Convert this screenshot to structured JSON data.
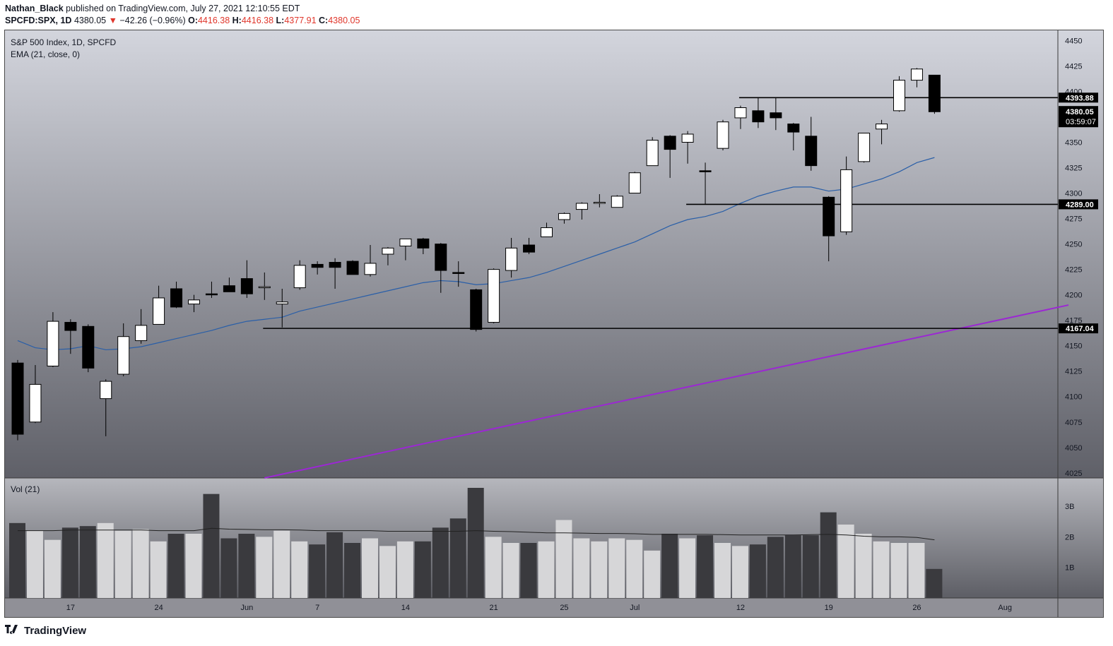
{
  "header": {
    "author": "Nathan_Black",
    "published_text": "published on TradingView.com, July 27, 2021 12:10:55 EDT",
    "symbol": "SPCFD:SPX, 1D",
    "last": "4380.05",
    "down_arrow": "▼",
    "change": "−42.26 (−0.96%)",
    "o_label": "O:",
    "o_value": "4416.38",
    "h_label": "H:",
    "h_value": "4416.38",
    "l_label": "L:",
    "l_value": "4377.91",
    "c_label": "C:",
    "c_value": "4380.05"
  },
  "legend": {
    "title": "S&P 500 Index, 1D, SPCFD",
    "ema": "EMA (21, close, 0)",
    "vol": "Vol (21)"
  },
  "branding": {
    "logo_text": "TradingView",
    "logo_icon": "tradingview-logo-icon"
  },
  "colors": {
    "up_body": "#ffffff",
    "down_body": "#000000",
    "ema_line": "#2a5fa8",
    "trend_line": "#9c27d4",
    "hline": "#000000",
    "vol_up": "#d6d6d8",
    "vol_down": "#3a3a3e",
    "vol_ma": "#222222"
  },
  "chart_data": {
    "type": "candlestick",
    "title": "S&P 500 Index, 1D, SPCFD",
    "price_axis": {
      "ticks": [
        4025,
        4050,
        4075,
        4100,
        4125,
        4150,
        4175,
        4200,
        4225,
        4250,
        4275,
        4300,
        4325,
        4350,
        4375,
        4400,
        4425,
        4450
      ],
      "range": [
        4020,
        4460
      ]
    },
    "x_axis": {
      "labels": [
        {
          "label": "17",
          "index": 3
        },
        {
          "label": "24",
          "index": 8
        },
        {
          "label": "Jun",
          "index": 13
        },
        {
          "label": "7",
          "index": 17
        },
        {
          "label": "14",
          "index": 22
        },
        {
          "label": "21",
          "index": 27
        },
        {
          "label": "25",
          "index": 31
        },
        {
          "label": "Jul",
          "index": 35
        },
        {
          "label": "12",
          "index": 41
        },
        {
          "label": "19",
          "index": 46
        },
        {
          "label": "26",
          "index": 51
        },
        {
          "label": "Aug",
          "index": 56
        }
      ]
    },
    "candles": [
      {
        "o": 4133,
        "h": 4136,
        "l": 4057,
        "c": 4063
      },
      {
        "o": 4075,
        "h": 4131,
        "l": 4074,
        "c": 4112
      },
      {
        "o": 4130,
        "h": 4183,
        "l": 4129,
        "c": 4174
      },
      {
        "o": 4173,
        "h": 4176,
        "l": 4142,
        "c": 4165
      },
      {
        "o": 4169,
        "h": 4171,
        "l": 4124,
        "c": 4128
      },
      {
        "o": 4098,
        "h": 4117,
        "l": 4061,
        "c": 4115
      },
      {
        "o": 4122,
        "h": 4172,
        "l": 4120,
        "c": 4159
      },
      {
        "o": 4155,
        "h": 4186,
        "l": 4152,
        "c": 4170
      },
      {
        "o": 4171,
        "h": 4209,
        "l": 4171,
        "c": 4197
      },
      {
        "o": 4206,
        "h": 4213,
        "l": 4187,
        "c": 4188
      },
      {
        "o": 4191,
        "h": 4200,
        "l": 4183,
        "c": 4195
      },
      {
        "o": 4201,
        "h": 4213,
        "l": 4197,
        "c": 4200
      },
      {
        "o": 4209,
        "h": 4217,
        "l": 4204,
        "c": 4203
      },
      {
        "o": 4216,
        "h": 4234,
        "l": 4197,
        "c": 4201
      },
      {
        "o": 4207,
        "h": 4222,
        "l": 4195,
        "c": 4208
      },
      {
        "o": 4191,
        "h": 4206,
        "l": 4168,
        "c": 4193
      },
      {
        "o": 4207,
        "h": 4234,
        "l": 4205,
        "c": 4229
      },
      {
        "o": 4230,
        "h": 4233,
        "l": 4220,
        "c": 4227
      },
      {
        "o": 4232,
        "h": 4236,
        "l": 4206,
        "c": 4227
      },
      {
        "o": 4233,
        "h": 4234,
        "l": 4220,
        "c": 4220
      },
      {
        "o": 4220,
        "h": 4249,
        "l": 4218,
        "c": 4231
      },
      {
        "o": 4240,
        "h": 4247,
        "l": 4229,
        "c": 4246
      },
      {
        "o": 4248,
        "h": 4255,
        "l": 4234,
        "c": 4255
      },
      {
        "o": 4255,
        "h": 4256,
        "l": 4240,
        "c": 4246
      },
      {
        "o": 4250,
        "h": 4251,
        "l": 4202,
        "c": 4224
      },
      {
        "o": 4222,
        "h": 4233,
        "l": 4208,
        "c": 4221
      },
      {
        "o": 4205,
        "h": 4206,
        "l": 4164,
        "c": 4166
      },
      {
        "o": 4173,
        "h": 4226,
        "l": 4172,
        "c": 4225
      },
      {
        "o": 4224,
        "h": 4256,
        "l": 4217,
        "c": 4246
      },
      {
        "o": 4249,
        "h": 4256,
        "l": 4240,
        "c": 4242
      },
      {
        "o": 4257,
        "h": 4271,
        "l": 4257,
        "c": 4266
      },
      {
        "o": 4274,
        "h": 4281,
        "l": 4270,
        "c": 4280
      },
      {
        "o": 4284,
        "h": 4291,
        "l": 4274,
        "c": 4290
      },
      {
        "o": 4290,
        "h": 4299,
        "l": 4286,
        "c": 4291
      },
      {
        "o": 4286,
        "h": 4298,
        "l": 4286,
        "c": 4297
      },
      {
        "o": 4300,
        "h": 4321,
        "l": 4300,
        "c": 4320
      },
      {
        "o": 4327,
        "h": 4355,
        "l": 4327,
        "c": 4352
      },
      {
        "o": 4356,
        "h": 4357,
        "l": 4315,
        "c": 4343
      },
      {
        "o": 4350,
        "h": 4361,
        "l": 4329,
        "c": 4358
      },
      {
        "o": 4322,
        "h": 4330,
        "l": 4289,
        "c": 4321
      },
      {
        "o": 4344,
        "h": 4372,
        "l": 4342,
        "c": 4370
      },
      {
        "o": 4374,
        "h": 4386,
        "l": 4363,
        "c": 4384
      },
      {
        "o": 4381,
        "h": 4394,
        "l": 4364,
        "c": 4370
      },
      {
        "o": 4379,
        "h": 4394,
        "l": 4362,
        "c": 4374
      },
      {
        "o": 4368,
        "h": 4369,
        "l": 4342,
        "c": 4360
      },
      {
        "o": 4356,
        "h": 4375,
        "l": 4322,
        "c": 4327
      },
      {
        "o": 4296,
        "h": 4297,
        "l": 4233,
        "c": 4258
      },
      {
        "o": 4262,
        "h": 4336,
        "l": 4259,
        "c": 4323
      },
      {
        "o": 4331,
        "h": 4359,
        "l": 4330,
        "c": 4359
      },
      {
        "o": 4363,
        "h": 4372,
        "l": 4348,
        "c": 4368
      },
      {
        "o": 4381,
        "h": 4415,
        "l": 4380,
        "c": 4411
      },
      {
        "o": 4411,
        "h": 4423,
        "l": 4404,
        "c": 4422
      },
      {
        "o": 4416,
        "h": 4416,
        "l": 4378,
        "c": 4380
      }
    ],
    "ema21": [
      4155,
      4148,
      4146,
      4147,
      4150,
      4146,
      4147,
      4149,
      4153,
      4157,
      4161,
      4165,
      4170,
      4174,
      4176,
      4178,
      4184,
      4188,
      4192,
      4196,
      4200,
      4204,
      4208,
      4212,
      4214,
      4213,
      4210,
      4211,
      4214,
      4217,
      4222,
      4228,
      4234,
      4240,
      4246,
      4252,
      4260,
      4268,
      4274,
      4277,
      4282,
      4290,
      4297,
      4302,
      4306,
      4306,
      4302,
      4304,
      4309,
      4314,
      4321,
      4330,
      4335
    ],
    "horizontal_levels": [
      {
        "price": 4393.88,
        "label": "4393.88",
        "from_index": 41
      },
      {
        "price": 4289.0,
        "label": "4289.00",
        "from_index": 38
      },
      {
        "price": 4167.04,
        "label": "4167.04",
        "from_index": 14
      }
    ],
    "trend_line": {
      "from": {
        "index": 14,
        "price": 4020
      },
      "to": {
        "index": 59.6,
        "price": 4190
      }
    },
    "price_labels": [
      {
        "price": 4380.05,
        "label": "4380.05",
        "sub": "03:59:07"
      }
    ],
    "volume": {
      "ticks": [
        {
          "label": "1B",
          "value": 1
        },
        {
          "label": "2B",
          "value": 2
        },
        {
          "label": "3B",
          "value": 3
        }
      ],
      "range": [
        0,
        3.6
      ],
      "values": [
        2.45,
        2.2,
        1.9,
        2.3,
        2.35,
        2.45,
        2.2,
        2.25,
        1.85,
        2.1,
        2.1,
        3.4,
        1.95,
        2.1,
        2.0,
        2.2,
        1.85,
        1.75,
        2.15,
        1.8,
        1.95,
        1.7,
        1.85,
        1.85,
        2.3,
        2.6,
        3.6,
        2.0,
        1.8,
        1.8,
        1.85,
        2.55,
        1.95,
        1.85,
        1.95,
        1.9,
        1.55,
        2.1,
        1.95,
        2.05,
        1.8,
        1.7,
        1.75,
        2.0,
        2.05,
        2.05,
        2.8,
        2.4,
        2.1,
        1.85,
        1.8,
        1.8,
        0.95
      ],
      "ma": [
        2.2,
        2.2,
        2.2,
        2.22,
        2.22,
        2.22,
        2.22,
        2.22,
        2.2,
        2.2,
        2.2,
        2.28,
        2.25,
        2.24,
        2.23,
        2.23,
        2.22,
        2.2,
        2.2,
        2.2,
        2.2,
        2.18,
        2.18,
        2.18,
        2.18,
        2.18,
        2.2,
        2.18,
        2.17,
        2.15,
        2.13,
        2.13,
        2.12,
        2.11,
        2.11,
        2.1,
        2.08,
        2.08,
        2.08,
        2.08,
        2.07,
        2.06,
        2.06,
        2.06,
        2.06,
        2.07,
        2.08,
        2.06,
        2.02,
        2.0,
        2.0,
        1.98,
        1.9
      ]
    }
  }
}
